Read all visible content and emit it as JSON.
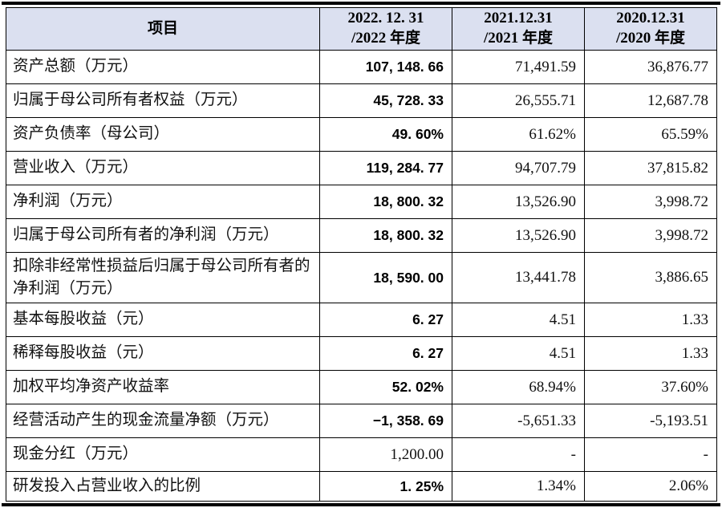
{
  "table": {
    "header": {
      "item": "项目",
      "c2022": {
        "line1": "2022. 12. 31",
        "line2": "/2022 年度"
      },
      "c2021": {
        "line1": "2021.12.31",
        "line2": "/2021 年度"
      },
      "c2020": {
        "line1": "2020.12.31",
        "line2": "/2020 年度"
      }
    },
    "rows": [
      {
        "label": "资产总额（万元）",
        "v2022": "107, 148. 66",
        "v2021": "71,491.59",
        "v2020": "36,876.77"
      },
      {
        "label": "归属于母公司所有者权益（万元）",
        "v2022": "45, 728. 33",
        "v2021": "26,555.71",
        "v2020": "12,687.78"
      },
      {
        "label": "资产负债率（母公司）",
        "v2022": "49. 60%",
        "v2021": "61.62%",
        "v2020": "65.59%"
      },
      {
        "label": "营业收入（万元）",
        "v2022": "119, 284. 77",
        "v2021": "94,707.79",
        "v2020": "37,815.82"
      },
      {
        "label": "净利润（万元）",
        "v2022": "18, 800. 32",
        "v2021": "13,526.90",
        "v2020": "3,998.72"
      },
      {
        "label": "归属于母公司所有者的净利润（万元）",
        "v2022": "18, 800. 32",
        "v2021": "13,526.90",
        "v2020": "3,998.72"
      },
      {
        "label": "扣除非经常性损益后归属于母公司所有者的净利润（万元）",
        "v2022": "18, 590. 00",
        "v2021": "13,441.78",
        "v2020": "3,886.65"
      },
      {
        "label": "基本每股收益（元）",
        "v2022": "6. 27",
        "v2021": "4.51",
        "v2020": "1.33"
      },
      {
        "label": "稀释每股收益（元）",
        "v2022": "6. 27",
        "v2021": "4.51",
        "v2020": "1.33"
      },
      {
        "label": "加权平均净资产收益率",
        "v2022": "52. 02%",
        "v2021": "68.94%",
        "v2020": "37.60%"
      },
      {
        "label": "经营活动产生的现金流量净额（万元）",
        "v2022": "−1, 358. 69",
        "v2021": "-5,651.33",
        "v2020": "-5,193.51"
      },
      {
        "label": "现金分红（万元）",
        "v2022": "1,200.00",
        "v2021": "-",
        "v2020": "-"
      },
      {
        "label": "研发投入占营业收入的比例",
        "v2022": "1. 25%",
        "v2021": "1.34%",
        "v2020": "2.06%"
      }
    ],
    "colors": {
      "header_bg": "#dbe0f0",
      "border": "#000000"
    }
  }
}
